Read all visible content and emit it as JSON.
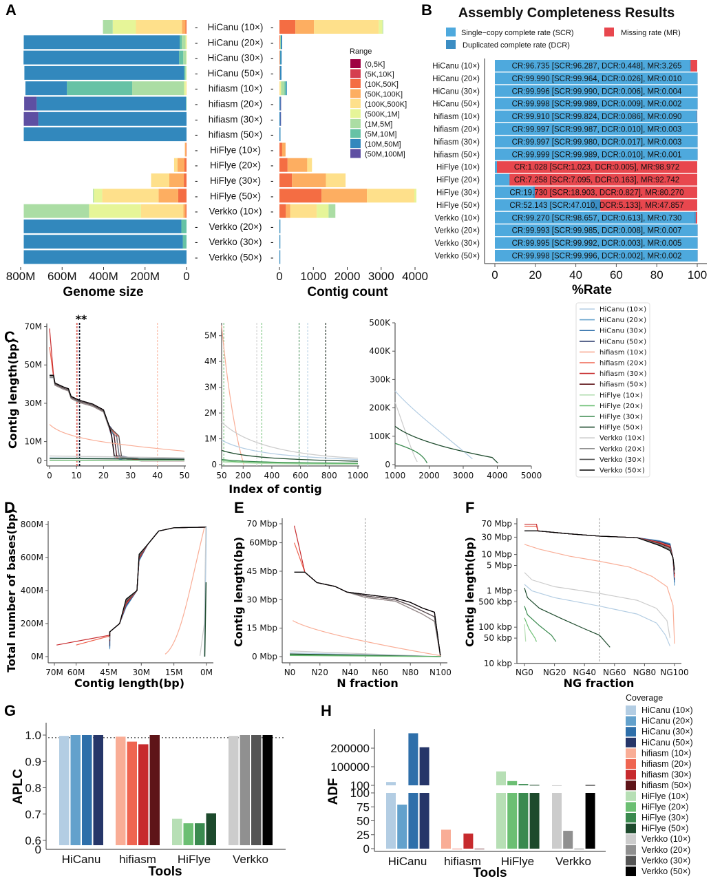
{
  "figure": {
    "panel_letters": [
      "A",
      "B",
      "C",
      "D",
      "E",
      "F",
      "G",
      "H"
    ],
    "samples": [
      "HiCanu (10×)",
      "HiCanu (20×)",
      "HiCanu (30×)",
      "HiCanu (50×)",
      "hifiasm (10×)",
      "hifiasm (20×)",
      "hifiasm (30×)",
      "hifiasm (50×)",
      "HiFlye (10×)",
      "HiFlye (20×)",
      "HiFlye (30×)",
      "HiFlye (50×)",
      "Verkko (10×)",
      "Verkko (20×)",
      "Verkko (30×)",
      "Verkko (50×)"
    ],
    "sample_colors": [
      "#b3cde3",
      "#63a1cc",
      "#2e6faa",
      "#263669",
      "#f9ad96",
      "#ef6551",
      "#c72a2d",
      "#5e1418",
      "#b7dfb5",
      "#6cbf73",
      "#3a8a4f",
      "#1d4a2c",
      "#cccccc",
      "#909090",
      "#555555",
      "#000000"
    ]
  },
  "chart_data": [
    {
      "id": "A-genome",
      "type": "bar",
      "orientation": "horizontal-stacked",
      "xlabel": "Genome size",
      "xticks": [
        "800M",
        "600M",
        "400M",
        "200M",
        "0"
      ],
      "xlim": [
        800,
        0
      ],
      "units": "Mbp",
      "legend_title": "Range",
      "legend": [
        "(0,5K]",
        "(5K,10K]",
        "(10K,50K]",
        "(50K,100K]",
        "(100K,500K]",
        "(500K,1M]",
        "(1M,5M]",
        "(5M,10M]",
        "(10M,50M]",
        "(50M,100M]"
      ],
      "legend_colors": [
        "#9e0142",
        "#d53e4f",
        "#f46d43",
        "#fdae61",
        "#fee08b",
        "#e6f598",
        "#abdda4",
        "#66c2a5",
        "#3288bd",
        "#5e4fa2"
      ],
      "series_by_sample": [
        [
          0,
          0,
          5,
          17,
          222,
          112,
          47,
          0,
          0,
          0
        ],
        [
          0,
          0,
          0,
          0,
          1,
          4,
          18,
          10,
          752,
          0
        ],
        [
          0,
          0,
          0,
          0,
          0,
          2,
          14,
          20,
          750,
          0
        ],
        [
          0,
          0,
          0,
          0,
          0,
          2,
          4,
          6,
          770,
          0
        ],
        [
          0,
          0,
          0,
          0,
          4,
          8,
          250,
          315,
          200,
          0
        ],
        [
          0,
          0,
          0,
          0,
          0,
          0,
          0,
          3,
          720,
          60
        ],
        [
          0,
          0,
          0,
          0,
          0,
          0,
          0,
          0,
          715,
          70
        ],
        [
          0,
          0,
          0,
          0,
          0,
          0,
          0,
          0,
          785,
          0
        ],
        [
          0,
          0,
          3,
          5,
          0,
          0,
          0,
          0,
          0,
          0
        ],
        [
          0,
          0,
          10,
          34,
          16,
          0,
          0,
          0,
          0,
          0
        ],
        [
          0,
          0,
          13,
          70,
          88,
          0,
          0,
          0,
          0,
          0
        ],
        [
          0,
          0,
          40,
          95,
          272,
          40,
          4,
          0,
          0,
          0
        ],
        [
          0,
          0,
          5,
          10,
          205,
          250,
          315,
          0,
          0,
          0
        ],
        [
          0,
          0,
          0,
          0,
          0,
          0,
          0,
          25,
          760,
          0
        ],
        [
          0,
          0,
          0,
          0,
          0,
          0,
          0,
          18,
          767,
          0
        ],
        [
          0,
          0,
          0,
          0,
          0,
          0,
          0,
          0,
          785,
          0
        ]
      ]
    },
    {
      "id": "A-count",
      "type": "bar",
      "orientation": "horizontal-stacked",
      "xlabel": "Contig count",
      "xticks": [
        "0",
        "1000",
        "2000",
        "3000",
        "4000"
      ],
      "xlim": [
        0,
        4000
      ],
      "series_by_sample": [
        [
          0,
          0,
          470,
          550,
          1910,
          110,
          20,
          0,
          0,
          0
        ],
        [
          0,
          0,
          20,
          0,
          0,
          5,
          10,
          5,
          40,
          0
        ],
        [
          0,
          0,
          15,
          0,
          0,
          0,
          5,
          5,
          40,
          0
        ],
        [
          0,
          0,
          15,
          0,
          0,
          0,
          0,
          3,
          42,
          0
        ],
        [
          0,
          0,
          0,
          0,
          30,
          20,
          100,
          50,
          20,
          0
        ],
        [
          0,
          0,
          0,
          0,
          0,
          0,
          0,
          2,
          30,
          2
        ],
        [
          0,
          0,
          0,
          0,
          0,
          0,
          0,
          0,
          30,
          2
        ],
        [
          0,
          0,
          0,
          0,
          0,
          0,
          0,
          0,
          30,
          0
        ],
        [
          0,
          0,
          80,
          100,
          0,
          0,
          0,
          0,
          0,
          0
        ],
        [
          0,
          0,
          240,
          580,
          140,
          0,
          0,
          0,
          0,
          0
        ],
        [
          0,
          0,
          370,
          1000,
          580,
          0,
          0,
          0,
          0,
          0
        ],
        [
          0,
          0,
          1240,
          1340,
          1400,
          60,
          0,
          0,
          0,
          0
        ],
        [
          0,
          0,
          190,
          130,
          780,
          350,
          200,
          0,
          0,
          0
        ],
        [
          0,
          0,
          0,
          0,
          0,
          0,
          0,
          2,
          25,
          0
        ],
        [
          0,
          0,
          0,
          0,
          0,
          0,
          0,
          1,
          25,
          0
        ],
        [
          0,
          0,
          0,
          0,
          0,
          0,
          0,
          0,
          25,
          0
        ]
      ]
    },
    {
      "id": "B",
      "type": "bar",
      "orientation": "horizontal-stacked",
      "title": "Assembly Completeness Results",
      "xlabel": "%Rate",
      "xticks": [
        "0",
        "20",
        "40",
        "60",
        "80",
        "100"
      ],
      "xlim": [
        0,
        100
      ],
      "legend": [
        {
          "label": "Single−copy complete rate (SCR)",
          "color": "#4ea9dd"
        },
        {
          "label": "Missing rate (MR)",
          "color": "#e8474e"
        },
        {
          "label": "Duplicated complete rate (DCR)",
          "color": "#3b8dc3"
        }
      ],
      "rows": [
        {
          "CR": 96.735,
          "SCR": 96.287,
          "DCR": 0.448,
          "MR": 3.265
        },
        {
          "CR": 99.99,
          "SCR": 99.964,
          "DCR": 0.026,
          "MR": 0.01
        },
        {
          "CR": 99.996,
          "SCR": 99.99,
          "DCR": 0.006,
          "MR": 0.004
        },
        {
          "CR": 99.998,
          "SCR": 99.989,
          "DCR": 0.009,
          "MR": 0.002
        },
        {
          "CR": 99.91,
          "SCR": 99.824,
          "DCR": 0.086,
          "MR": 0.09
        },
        {
          "CR": 99.997,
          "SCR": 99.987,
          "DCR": 0.01,
          "MR": 0.003
        },
        {
          "CR": 99.997,
          "SCR": 99.98,
          "DCR": 0.017,
          "MR": 0.003
        },
        {
          "CR": 99.999,
          "SCR": 99.989,
          "DCR": 0.01,
          "MR": 0.001
        },
        {
          "CR": 1.028,
          "SCR": 1.023,
          "DCR": 0.005,
          "MR": 98.972
        },
        {
          "CR": 7.258,
          "SCR": 7.095,
          "DCR": 0.163,
          "MR": 92.742
        },
        {
          "CR": 19.73,
          "SCR": 18.903,
          "DCR": 0.827,
          "MR": 80.27
        },
        {
          "CR": 52.143,
          "SCR": 47.01,
          "DCR": 5.133,
          "MR": 47.857
        },
        {
          "CR": 99.27,
          "SCR": 98.657,
          "DCR": 0.613,
          "MR": 0.73
        },
        {
          "CR": 99.993,
          "SCR": 99.985,
          "DCR": 0.008,
          "MR": 0.007
        },
        {
          "CR": 99.995,
          "SCR": 99.992,
          "DCR": 0.003,
          "MR": 0.005
        },
        {
          "CR": 99.998,
          "SCR": 99.996,
          "DCR": 0.002,
          "MR": 0.002
        }
      ],
      "row_labels": [
        "CR:96.735 [SCR:96.287, DCR:0.448], MR:3.265",
        "CR:99.990 [SCR:99.964, DCR:0.026], MR:0.010",
        "CR:99.996 [SCR:99.990, DCR:0.006], MR:0.004",
        "CR:99.998 [SCR:99.989, DCR:0.009], MR:0.002",
        "CR:99.910 [SCR:99.824, DCR:0.086], MR:0.090",
        "CR:99.997 [SCR:99.987, DCR:0.010], MR:0.003",
        "CR:99.997 [SCR:99.980, DCR:0.017], MR:0.003",
        "CR:99.999 [SCR:99.989, DCR:0.010], MR:0.001",
        "CR:1.028 [SCR:1.023, DCR:0.005], MR:98.972",
        "CR:7.258 [SCR:7.095, DCR:0.163], MR:92.742",
        "CR:19.730 [SCR:18.903, DCR:0.827], MR:80.270",
        "CR:52.143 [SCR:47.010, DCR:5.133], MR:47.857",
        "CR:99.270 [SCR:98.657, DCR:0.613], MR:0.730",
        "CR:99.993 [SCR:99.985, DCR:0.008], MR:0.007",
        "CR:99.995 [SCR:99.992, DCR:0.003], MR:0.005",
        "CR:99.998 [SCR:99.996, DCR:0.002], MR:0.002"
      ]
    },
    {
      "id": "C",
      "type": "line",
      "ylabel": "Contig length(bp)",
      "xlabel": "Index of contig",
      "annotation": "**",
      "subplots": [
        {
          "xlim": [
            0,
            50
          ],
          "ylim": [
            -2,
            72
          ],
          "xticks": [
            "0",
            "10",
            "20",
            "30",
            "40",
            "50"
          ],
          "yticks": [
            {
              "v": 0,
              "t": "0"
            },
            {
              "v": 10,
              "t": "10M"
            },
            {
              "v": 30,
              "t": "30M"
            },
            {
              "v": 50,
              "t": "50M"
            },
            {
              "v": 70,
              "t": "70M"
            }
          ],
          "vlines": [
            {
              "x": 10,
              "c": 4
            },
            {
              "x": 10.2,
              "c": 6
            },
            {
              "x": 11,
              "c": 3
            },
            {
              "x": 11.2,
              "c": 15
            },
            {
              "x": 40,
              "c": 4
            }
          ]
        },
        {
          "xlim": [
            50,
            1000
          ],
          "ylim": [
            0,
            5.5
          ],
          "xticks": [
            "50",
            "200",
            "400",
            "600",
            "800",
            "1000"
          ],
          "yticks": [
            {
              "v": 0,
              "t": "0"
            },
            {
              "v": 1,
              "t": "1M"
            },
            {
              "v": 2,
              "t": "2M"
            },
            {
              "v": 3,
              "t": "3M"
            },
            {
              "v": 4,
              "t": "4M"
            },
            {
              "v": 5,
              "t": "5M"
            }
          ],
          "vlines": [
            {
              "x": 65,
              "c": 9
            },
            {
              "x": 295,
              "c": 12
            },
            {
              "x": 330,
              "c": 9
            },
            {
              "x": 590,
              "c": 10
            },
            {
              "x": 650,
              "c": 0
            },
            {
              "x": 775,
              "c": 11
            },
            {
              "x": 777,
              "c": 14
            }
          ]
        },
        {
          "xlim": [
            1000,
            5000
          ],
          "ylim": [
            0,
            500
          ],
          "xticks": [
            "1000",
            "2000",
            "3000",
            "4000",
            "5000"
          ],
          "yticks": [
            {
              "v": 0,
              "t": "0"
            },
            {
              "v": 100,
              "t": "100K"
            },
            {
              "v": 200,
              "t": "200K"
            },
            {
              "v": 300,
              "t": "300k"
            },
            {
              "v": 400,
              "t": "400K"
            },
            {
              "v": 500,
              "t": "500K"
            }
          ],
          "vlines": []
        }
      ],
      "legend": [
        "HiCanu (10×)",
        "HiCanu (20×)",
        "HiCanu (30×)",
        "HiCanu (50×)",
        "hifiasm (10×)",
        "hifiasm (20×)",
        "hifiasm (30×)",
        "hifiasm (50×)",
        "HiFlye (10×)",
        "HiFlye (20×)",
        "HiFlye (30×)",
        "HiFlye (50×)",
        "Verkko (10×)",
        "Verkko (20×)",
        "Verkko (30×)",
        "Verkko (50×)"
      ]
    },
    {
      "id": "D",
      "type": "line",
      "xlabel": "Contig length(bp)",
      "ylabel": "Total number of bases(bp)",
      "xticks": [
        {
          "v": 70,
          "t": "70M"
        },
        {
          "v": 60,
          "t": "60M"
        },
        {
          "v": 45,
          "t": "45M"
        },
        {
          "v": 30,
          "t": "30M"
        },
        {
          "v": 15,
          "t": "15M"
        },
        {
          "v": 0,
          "t": "0M"
        }
      ],
      "yticks": [
        {
          "v": 0,
          "t": "0M"
        },
        {
          "v": 200,
          "t": "200M"
        },
        {
          "v": 400,
          "t": "400M"
        },
        {
          "v": 600,
          "t": "600M"
        },
        {
          "v": 800,
          "t": "800M"
        }
      ],
      "xlim": [
        72,
        -3
      ],
      "ylim": [
        -30,
        810
      ]
    },
    {
      "id": "E",
      "type": "line",
      "xlabel": "N fraction",
      "ylabel": "Contig length(bp)",
      "xticks": [
        {
          "v": 0,
          "t": "N0"
        },
        {
          "v": 20,
          "t": "N20"
        },
        {
          "v": 40,
          "t": "N40"
        },
        {
          "v": 60,
          "t": "N60"
        },
        {
          "v": 80,
          "t": "N80"
        },
        {
          "v": 100,
          "t": "N100"
        }
      ],
      "yticks": [
        {
          "v": 0,
          "t": "0 Mbp"
        },
        {
          "v": 15,
          "t": "15 Mbp"
        },
        {
          "v": 30,
          "t": "30 Mbp"
        },
        {
          "v": 45,
          "t": "45 Mbp"
        },
        {
          "v": 60,
          "t": "60Mbp"
        },
        {
          "v": 70,
          "t": "70 Mbp"
        }
      ],
      "xlim": [
        -5,
        105
      ],
      "ylim": [
        -3,
        72
      ],
      "vline": 50
    },
    {
      "id": "F",
      "type": "line",
      "xlabel": "NG fraction",
      "ylabel": "Contig length(bp)",
      "yscale": "log",
      "xticks": [
        {
          "v": 0,
          "t": "NG0"
        },
        {
          "v": 20,
          "t": "NG20"
        },
        {
          "v": 40,
          "t": "NG40"
        },
        {
          "v": 60,
          "t": "NG60"
        },
        {
          "v": 80,
          "t": "NG80"
        },
        {
          "v": 100,
          "t": "NG100"
        }
      ],
      "yticks": [
        {
          "v": 10,
          "t": "10 kbp"
        },
        {
          "v": 50,
          "t": "50 kbp"
        },
        {
          "v": 100,
          "t": "100 kbp"
        },
        {
          "v": 500,
          "t": "500 kbp"
        },
        {
          "v": 1000,
          "t": "1 Mbp"
        },
        {
          "v": 5000,
          "t": "5 Mbp"
        },
        {
          "v": 10000,
          "t": "10 Mbp"
        },
        {
          "v": 30000,
          "t": "30 Mbp"
        },
        {
          "v": 70000,
          "t": "70 Mbp"
        }
      ],
      "xlim": [
        -5,
        105
      ],
      "ylim_kbp": [
        10,
        100000
      ],
      "vline": 50
    },
    {
      "id": "G",
      "type": "bar",
      "xlabel": "Tools",
      "ylabel": "APLC",
      "categories": [
        "HiCanu",
        "hifiasm",
        "HiFlye",
        "Verkko"
      ],
      "yticks": [
        "0",
        "0.6",
        "0.7",
        "0.8",
        "0.9",
        "1.0"
      ],
      "ylim": [
        0.58,
        1.05
      ],
      "hline": 0.99,
      "values": [
        [
          0.997,
          1.0,
          1.0,
          1.0
        ],
        [
          0.994,
          0.975,
          0.965,
          1.0
        ],
        [
          0.682,
          0.665,
          0.665,
          0.703
        ],
        [
          0.997,
          1.0,
          1.0,
          1.0
        ]
      ]
    },
    {
      "id": "H",
      "type": "bar",
      "xlabel": "Tools",
      "ylabel": "ADF",
      "categories": [
        "HiCanu",
        "hifiasm",
        "HiFlye",
        "Verkko"
      ],
      "yticks_lower": [
        "0",
        "25",
        "50",
        "75",
        "100"
      ],
      "yticks_upper": [
        "100",
        "100000",
        "200000"
      ],
      "broken_axis": true,
      "legend_title": "Coverage",
      "values": [
        [
          18000,
          79,
          280000,
          205000
        ],
        [
          34,
          0,
          27,
          0
        ],
        [
          75000,
          23000,
          7000,
          2500
        ],
        [
          400,
          32,
          0,
          2000
        ]
      ]
    }
  ],
  "labels": {
    "a_genome_xlabel": "Genome size",
    "a_count_xlabel": "Contig count",
    "a_legend_title": "Range",
    "b_title": "Assembly Completeness Results",
    "b_xlabel": "%Rate",
    "c_ylabel": "Contig length(bp)",
    "c_xlabel": "Index of contig",
    "c_annotation": "**",
    "d_xlabel": "Contig length(bp)",
    "d_ylabel": "Total number of bases(bp)",
    "e_xlabel": "N fraction",
    "e_ylabel": "Contig length(bp)",
    "f_xlabel": "NG fraction",
    "f_ylabel": "Contig length(bp)",
    "g_xlabel": "Tools",
    "g_ylabel": "APLC",
    "h_xlabel": "Tools",
    "h_ylabel": "ADF",
    "h_legend_title": "Coverage"
  }
}
